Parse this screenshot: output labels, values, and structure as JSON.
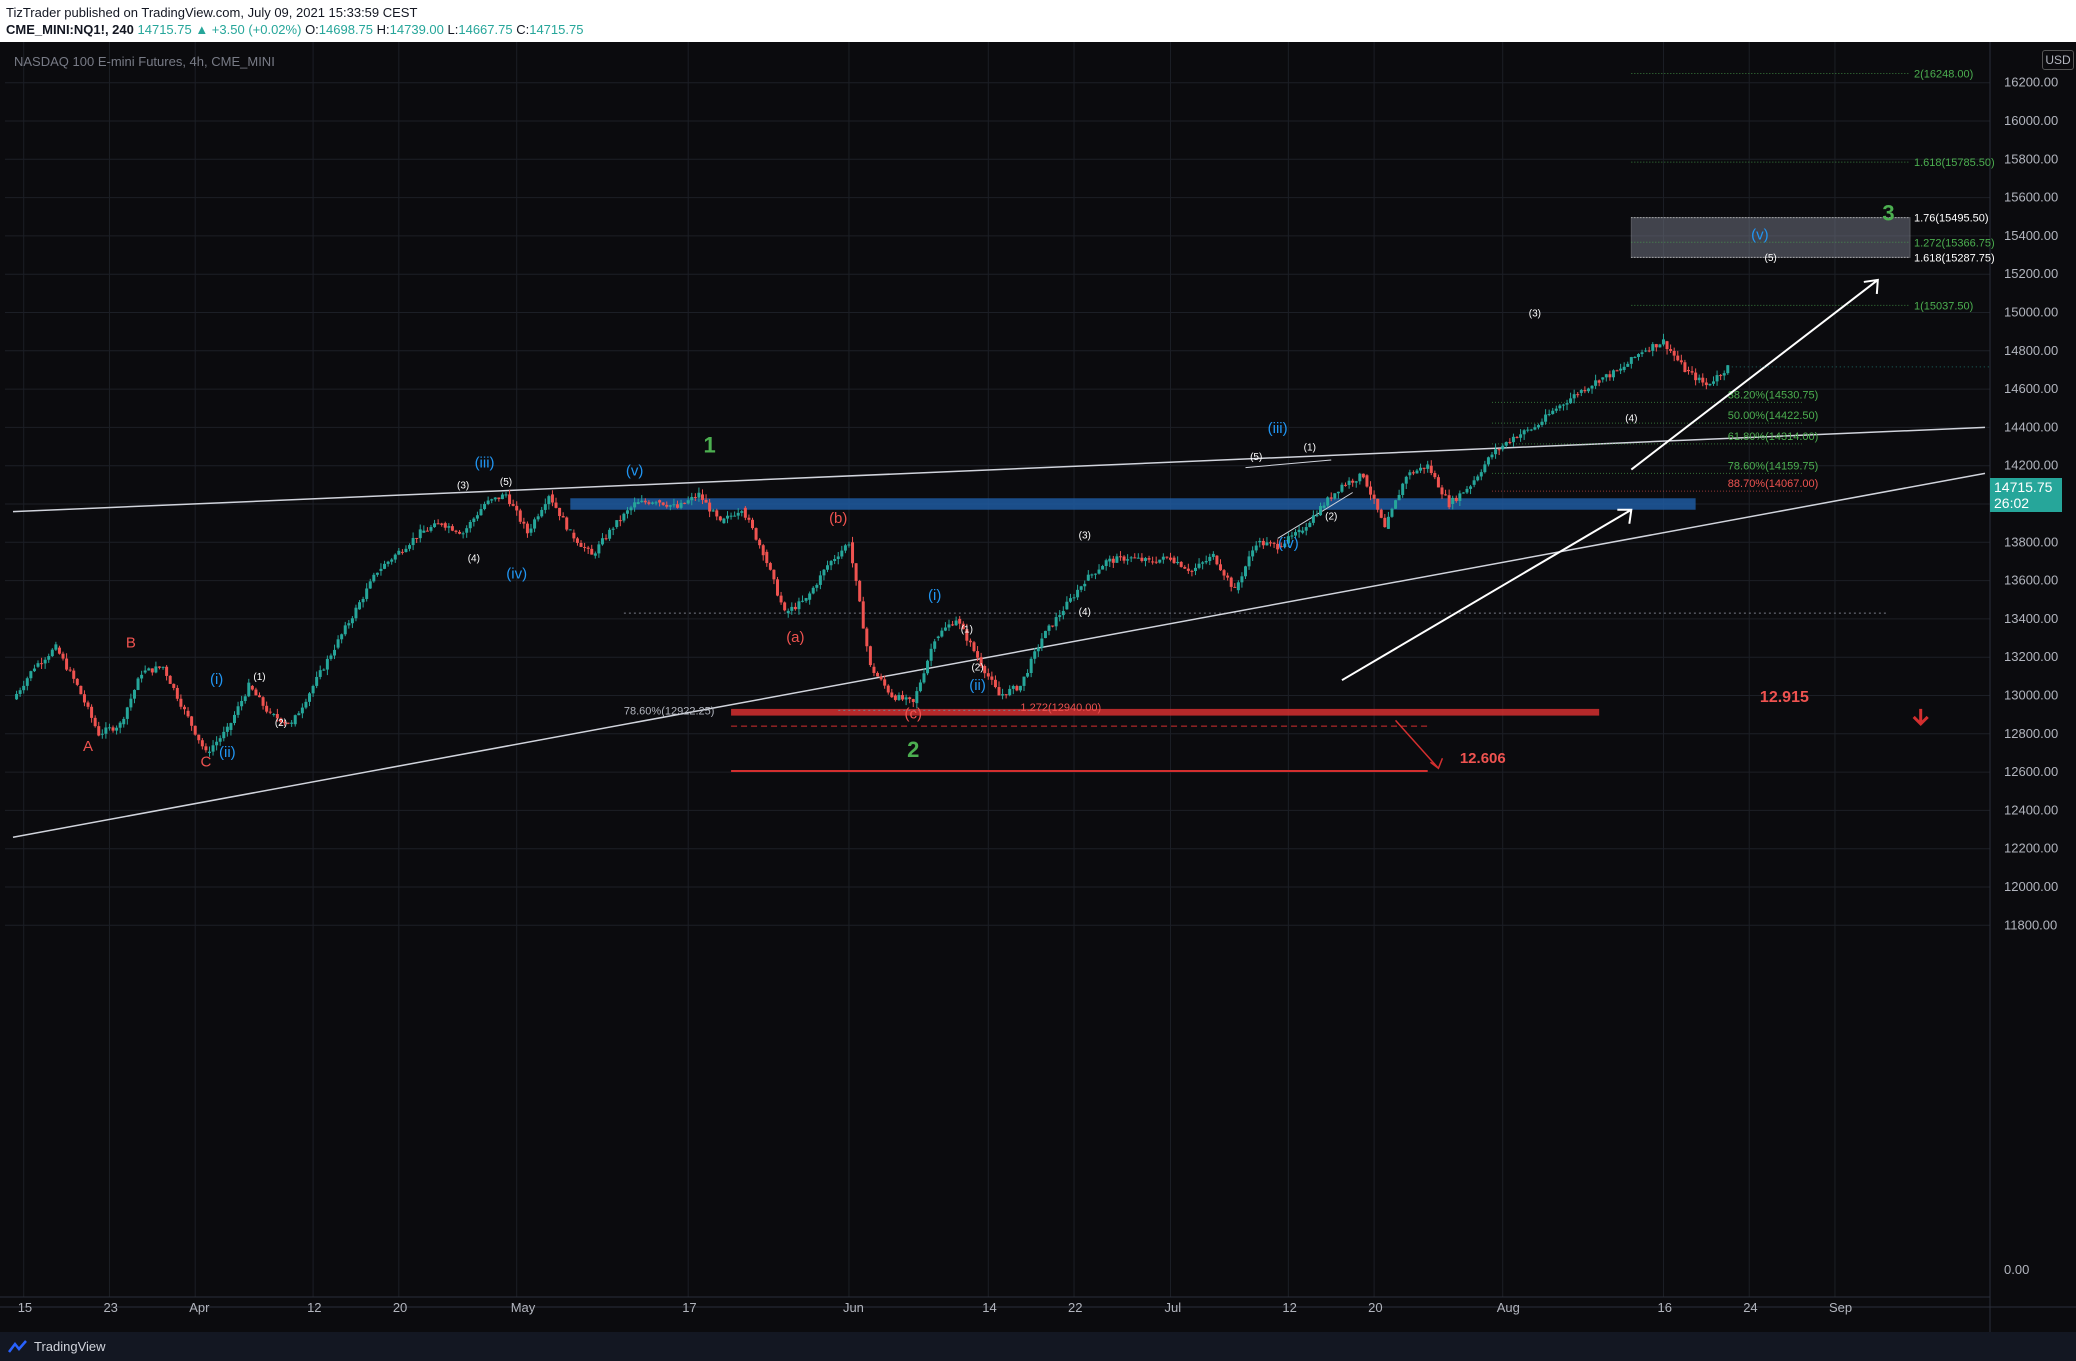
{
  "header": {
    "publisher": "TizTrader published on TradingView.com, July 09, 2021 15:33:59 CEST",
    "symbol": "CME_MINI:NQ1!, 240",
    "change": "14715.75 ▲ +3.50 (+0.02%)",
    "ohlc": [
      {
        "key": "O:",
        "value": "14698.75"
      },
      {
        "key": "H:",
        "value": "14739.00"
      },
      {
        "key": "L:",
        "value": "14667.75"
      },
      {
        "key": "C:",
        "value": "14715.75"
      }
    ]
  },
  "chart_title": "NASDAQ 100 E-mini Futures, 4h, CME_MINI",
  "currency_badge": "USD",
  "last_price": {
    "value": "14715.75",
    "countdown": "26:02"
  },
  "footer": {
    "brand": "TradingView"
  },
  "colors": {
    "background": "#0b0b0e",
    "grid": "#1c1f26",
    "up": "#26a69a",
    "down": "#ef5350",
    "wave_green": "#4caf50",
    "wave_blue": "#2196f3",
    "wave_red": "#ef5350",
    "zone_blue": "#1e5aa0",
    "zone_red": "#d32f2f",
    "last_price": "#26a69a"
  },
  "chart_data": {
    "type": "candlestick",
    "title": "NASDAQ 100 E-mini Futures, 4h, CME_MINI",
    "ylim": [
      11700,
      16350
    ],
    "y_ticks": [
      "16200.00",
      "16000.00",
      "15800.00",
      "15600.00",
      "15400.00",
      "15200.00",
      "15000.00",
      "14800.00",
      "14600.00",
      "14400.00",
      "14200.00",
      "14000.00",
      "13800.00",
      "13600.00",
      "13400.00",
      "13200.00",
      "13000.00",
      "12800.00",
      "12600.00",
      "12400.00",
      "12200.00",
      "12000.00",
      "11800.00"
    ],
    "y_tick_values": [
      16200,
      16000,
      15800,
      15600,
      15400,
      15200,
      15000,
      14800,
      14600,
      14400,
      14200,
      14000,
      13800,
      13600,
      13400,
      13200,
      13000,
      12800,
      12600,
      12400,
      12200,
      12000,
      11800
    ],
    "volume_axis_label": "0.00",
    "x_labels": [
      "15",
      "23",
      "Apr",
      "12",
      "20",
      "May",
      "17",
      "Jun",
      "14",
      "22",
      "Jul",
      "12",
      "20",
      "Aug",
      "16",
      "24",
      "Sep"
    ],
    "x_label_days": [
      -16,
      -8,
      0,
      11,
      19,
      30,
      46,
      61,
      74,
      82,
      91,
      102,
      110,
      122,
      137,
      145,
      153
    ],
    "x_day_range": [
      -17,
      167
    ],
    "price_path": [
      [
        -17,
        12980
      ],
      [
        -15,
        13150
      ],
      [
        -13,
        13250
      ],
      [
        -11,
        13050
      ],
      [
        -9,
        12800
      ],
      [
        -7,
        12850
      ],
      [
        -5,
        13120
      ],
      [
        -3,
        13150
      ],
      [
        -1,
        12920
      ],
      [
        1,
        12700
      ],
      [
        3,
        12820
      ],
      [
        5,
        13050
      ],
      [
        7,
        12900
      ],
      [
        9,
        12850
      ],
      [
        11,
        13050
      ],
      [
        13,
        13250
      ],
      [
        15,
        13450
      ],
      [
        17,
        13650
      ],
      [
        19,
        13750
      ],
      [
        21,
        13850
      ],
      [
        23,
        13900
      ],
      [
        25,
        13850
      ],
      [
        27,
        14000
      ],
      [
        29,
        14050
      ],
      [
        31,
        13850
      ],
      [
        33,
        14050
      ],
      [
        35,
        13850
      ],
      [
        37,
        13730
      ],
      [
        39,
        13880
      ],
      [
        41,
        14000
      ],
      [
        43,
        14020
      ],
      [
        45,
        13980
      ],
      [
        47,
        14050
      ],
      [
        49,
        13900
      ],
      [
        51,
        13980
      ],
      [
        53,
        13750
      ],
      [
        55,
        13430
      ],
      [
        57,
        13500
      ],
      [
        59,
        13680
      ],
      [
        61,
        13800
      ],
      [
        63,
        13150
      ],
      [
        65,
        13000
      ],
      [
        67,
        12960
      ],
      [
        69,
        13300
      ],
      [
        71,
        13400
      ],
      [
        73,
        13200
      ],
      [
        75,
        13000
      ],
      [
        77,
        13050
      ],
      [
        79,
        13300
      ],
      [
        81,
        13450
      ],
      [
        83,
        13600
      ],
      [
        85,
        13700
      ],
      [
        87,
        13720
      ],
      [
        89,
        13700
      ],
      [
        91,
        13720
      ],
      [
        93,
        13650
      ],
      [
        95,
        13730
      ],
      [
        97,
        13550
      ],
      [
        99,
        13800
      ],
      [
        101,
        13780
      ],
      [
        103,
        13850
      ],
      [
        105,
        13980
      ],
      [
        107,
        14100
      ],
      [
        109,
        14150
      ],
      [
        111,
        13870
      ],
      [
        113,
        14150
      ],
      [
        115,
        14200
      ],
      [
        117,
        14000
      ],
      [
        119,
        14100
      ],
      [
        121,
        14260
      ],
      [
        123,
        14350
      ],
      [
        125,
        14400
      ],
      [
        127,
        14500
      ],
      [
        129,
        14580
      ],
      [
        131,
        14650
      ],
      [
        133,
        14700
      ],
      [
        135,
        14800
      ],
      [
        137,
        14850
      ],
      [
        139,
        14700
      ],
      [
        141,
        14620
      ],
      [
        143,
        14715
      ]
    ]
  },
  "annotations": {
    "waves": [
      {
        "label": "1",
        "day": 48,
        "price": 14270,
        "color": "green",
        "size": "big"
      },
      {
        "label": "2",
        "day": 67,
        "price": 12680,
        "color": "green",
        "size": "big"
      },
      {
        "label": "3",
        "day": 158,
        "price": 15480,
        "color": "green",
        "size": "big"
      },
      {
        "label": "A",
        "day": -10,
        "price": 12710,
        "color": "red",
        "size": "mid"
      },
      {
        "label": "B",
        "day": -6,
        "price": 13250,
        "color": "red",
        "size": "mid"
      },
      {
        "label": "C",
        "day": 1,
        "price": 12630,
        "color": "red",
        "size": "mid"
      },
      {
        "label": "(a)",
        "day": 56,
        "price": 13280,
        "color": "red",
        "size": "mid"
      },
      {
        "label": "(b)",
        "day": 60,
        "price": 13900,
        "color": "red",
        "size": "mid"
      },
      {
        "label": "(c)",
        "day": 67,
        "price": 12880,
        "color": "red",
        "size": "mid"
      },
      {
        "label": "(i)",
        "day": 2,
        "price": 13060,
        "color": "blue",
        "size": "mid"
      },
      {
        "label": "(ii)",
        "day": 3,
        "price": 12680,
        "color": "blue",
        "size": "mid"
      },
      {
        "label": "(iii)",
        "day": 27,
        "price": 14190,
        "color": "blue",
        "size": "mid"
      },
      {
        "label": "(iv)",
        "day": 30,
        "price": 13610,
        "color": "blue",
        "size": "mid"
      },
      {
        "label": "(v)",
        "day": 41,
        "price": 14150,
        "color": "blue",
        "size": "mid"
      },
      {
        "label": "(i)",
        "day": 69,
        "price": 13500,
        "color": "blue",
        "size": "mid"
      },
      {
        "label": "(ii)",
        "day": 73,
        "price": 13030,
        "color": "blue",
        "size": "mid"
      },
      {
        "label": "(iii)",
        "day": 101,
        "price": 14370,
        "color": "blue",
        "size": "mid"
      },
      {
        "label": "(iv)",
        "day": 102,
        "price": 13770,
        "color": "blue",
        "size": "mid"
      },
      {
        "label": "(v)",
        "day": 146,
        "price": 15380,
        "color": "blue",
        "size": "mid"
      },
      {
        "label": "(1)",
        "day": 6,
        "price": 13080,
        "color": "white",
        "size": "small"
      },
      {
        "label": "(2)",
        "day": 8,
        "price": 12840,
        "color": "white",
        "size": "small"
      },
      {
        "label": "(3)",
        "day": 25,
        "price": 14080,
        "color": "white",
        "size": "small"
      },
      {
        "label": "(4)",
        "day": 26,
        "price": 13700,
        "color": "white",
        "size": "small"
      },
      {
        "label": "(5)",
        "day": 29,
        "price": 14100,
        "color": "white",
        "size": "small"
      },
      {
        "label": "(1)",
        "day": 72,
        "price": 13330,
        "color": "white",
        "size": "small"
      },
      {
        "label": "(2)",
        "day": 73,
        "price": 13130,
        "color": "white",
        "size": "small"
      },
      {
        "label": "(3)",
        "day": 83,
        "price": 13820,
        "color": "white",
        "size": "small"
      },
      {
        "label": "(4)",
        "day": 83,
        "price": 13420,
        "color": "white",
        "size": "small"
      },
      {
        "label": "(5)",
        "day": 99,
        "price": 14230,
        "color": "white",
        "size": "small"
      },
      {
        "label": "(1)",
        "day": 104,
        "price": 14280,
        "color": "white",
        "size": "small"
      },
      {
        "label": "(2)",
        "day": 106,
        "price": 13920,
        "color": "white",
        "size": "small"
      },
      {
        "label": "(3)",
        "day": 125,
        "price": 14980,
        "color": "white",
        "size": "small"
      },
      {
        "label": "(4)",
        "day": 134,
        "price": 14430,
        "color": "white",
        "size": "small"
      },
      {
        "label": "(5)",
        "day": 147,
        "price": 15270,
        "color": "white",
        "size": "small"
      }
    ],
    "fib_levels": [
      {
        "label": "2(16248.00)",
        "price": 16248,
        "color": "#4caf50"
      },
      {
        "label": "1.618(15785.50)",
        "price": 15785.5,
        "color": "#4caf50"
      },
      {
        "label": "1.76(15495.50)",
        "price": 15495.5,
        "color": "#ffffff"
      },
      {
        "label": "1.272(15366.75)",
        "price": 15366.75,
        "color": "#4caf50"
      },
      {
        "label": "1.618(15287.75)",
        "price": 15287.75,
        "color": "#ffffff"
      },
      {
        "label": "1(15037.50)",
        "price": 15037.5,
        "color": "#4caf50"
      }
    ],
    "retracements": [
      {
        "label": "38.20%(14530.75)",
        "price": 14530.75,
        "color": "#4caf50"
      },
      {
        "label": "50.00%(14422.50)",
        "price": 14422.5,
        "color": "#4caf50"
      },
      {
        "label": "61.80%(14314.00)",
        "price": 14314,
        "color": "#4caf50"
      },
      {
        "label": "78.60%(14159.75)",
        "price": 14159.75,
        "color": "#4caf50"
      },
      {
        "label": "88.70%(14067.00)",
        "price": 14067,
        "color": "#ef5350"
      }
    ],
    "other_labels": [
      {
        "label": "78.60%(12922.25)",
        "color": "#b2b5be"
      },
      {
        "label": "1.272(12940.00)",
        "color": "#ef5350"
      }
    ],
    "targets": [
      {
        "label": "12.915",
        "price": 12915,
        "color": "#ef5350"
      },
      {
        "label": "12.606",
        "price": 12606,
        "color": "#ef5350"
      }
    ]
  }
}
